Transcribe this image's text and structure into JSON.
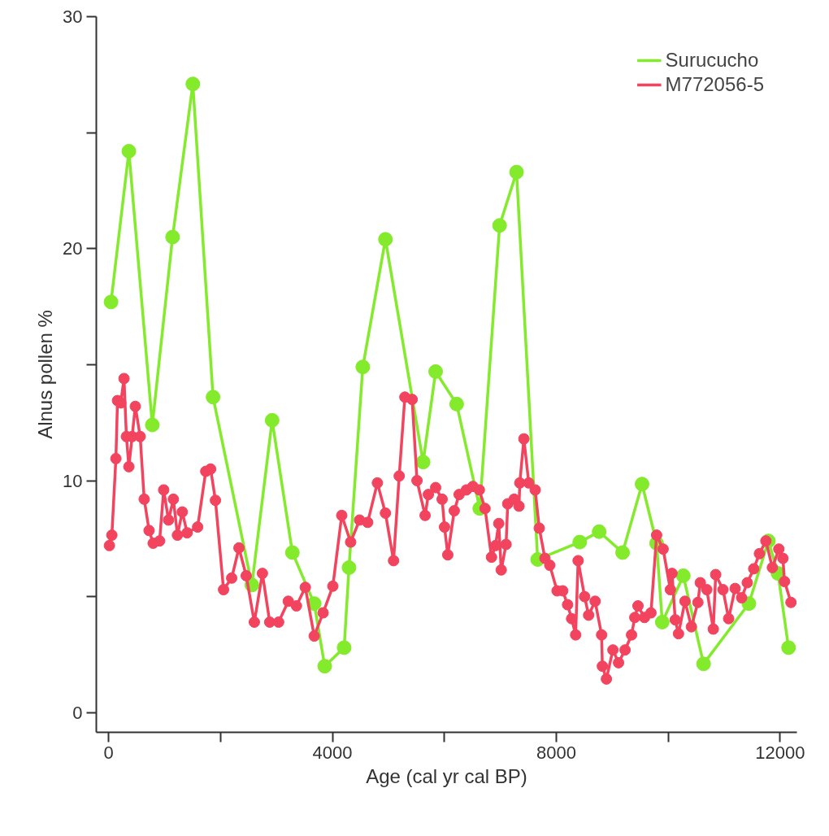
{
  "chart_data": {
    "type": "line",
    "xlabel": "Age (cal yr cal BP)",
    "ylabel": "Alnus pollen %",
    "xlim": [
      -220,
      12300
    ],
    "ylim": [
      -0.85,
      30
    ],
    "xticks": [
      0,
      {
        "value": 2000,
        "label": null
      },
      4000,
      {
        "value": 6000,
        "label": null
      },
      8000,
      {
        "value": 10000,
        "label": null
      },
      12000
    ],
    "yticks": [
      0,
      {
        "value": 5,
        "label": null
      },
      10,
      {
        "value": 15,
        "label": null
      },
      20,
      {
        "value": 25,
        "label": null
      },
      30
    ],
    "grid": false,
    "legend": "top right",
    "marker": "circle",
    "line_style": "solid",
    "series": [
      {
        "name": "Surucucho",
        "color": "#84ea2c",
        "x": [
          43,
          362,
          781,
          1143,
          1505,
          1866,
          2560,
          2922,
          3284,
          3674,
          3862,
          4209,
          4296,
          4542,
          4947,
          5620,
          5844,
          6220,
          6632,
          6987,
          7290,
          7667,
          8419,
          8766,
          9185,
          9533,
          9793,
          9894,
          10270,
          10632,
          11442,
          11790,
          11962,
          12151
        ],
        "values": [
          17.7,
          24.2,
          12.4,
          20.5,
          27.1,
          13.6,
          5.5,
          12.6,
          6.9,
          4.7,
          2.0,
          2.8,
          6.25,
          14.9,
          20.4,
          10.8,
          14.7,
          13.3,
          8.8,
          21.0,
          23.3,
          6.6,
          7.35,
          7.8,
          6.9,
          9.85,
          7.3,
          3.9,
          5.9,
          2.1,
          4.7,
          7.4,
          6.0,
          2.8
        ]
      },
      {
        "name": "M772056-5",
        "color": "#f2445e",
        "x": [
          14,
          58,
          130,
          159,
          217,
          275,
          318,
          362,
          420,
          477,
          564,
          636,
          723,
          796,
          911,
          984,
          1070,
          1157,
          1230,
          1316,
          1403,
          1591,
          1736,
          1823,
          1909,
          2054,
          2199,
          2329,
          2459,
          2604,
          2748,
          2879,
          3038,
          3211,
          3356,
          3515,
          3674,
          3833,
          4007,
          4166,
          4325,
          4484,
          4629,
          4803,
          4947,
          5092,
          5193,
          5294,
          5424,
          5511,
          5656,
          5714,
          5844,
          5960,
          6003,
          6061,
          6177,
          6264,
          6394,
          6510,
          6625,
          6727,
          6842,
          6914,
          6972,
          7016,
          7103,
          7132,
          7247,
          7334,
          7348,
          7421,
          7508,
          7623,
          7696,
          7797,
          7884,
          8014,
          8115,
          8202,
          8274,
          8346,
          8390,
          8506,
          8578,
          8694,
          8810,
          8824,
          8896,
          9012,
          9113,
          9229,
          9345,
          9403,
          9460,
          9576,
          9692,
          9793,
          9909,
          10039,
          10068,
          10126,
          10184,
          10300,
          10415,
          10531,
          10574,
          10690,
          10806,
          10849,
          10979,
          11080,
          11196,
          11312,
          11413,
          11529,
          11630,
          11746,
          11862,
          11977,
          12050,
          12079,
          12194
        ],
        "values": [
          7.2,
          7.65,
          10.95,
          13.45,
          13.35,
          14.4,
          11.9,
          10.6,
          11.9,
          13.2,
          11.9,
          9.2,
          7.85,
          7.3,
          7.4,
          9.6,
          8.3,
          9.2,
          7.65,
          8.65,
          7.75,
          8.0,
          10.4,
          10.5,
          9.15,
          5.3,
          5.8,
          7.1,
          5.9,
          3.9,
          6.0,
          3.9,
          3.9,
          4.8,
          4.6,
          5.4,
          3.3,
          4.3,
          5.45,
          8.5,
          7.35,
          8.3,
          8.2,
          9.9,
          8.6,
          6.55,
          10.2,
          13.6,
          13.5,
          10.0,
          8.5,
          9.4,
          9.7,
          9.2,
          8.0,
          6.8,
          8.7,
          9.4,
          9.6,
          9.75,
          9.6,
          8.8,
          6.7,
          7.2,
          8.15,
          6.15,
          7.25,
          9.0,
          9.2,
          8.9,
          9.9,
          11.8,
          9.9,
          9.6,
          7.95,
          6.65,
          6.35,
          5.25,
          5.25,
          4.65,
          4.05,
          3.35,
          6.55,
          5.0,
          4.2,
          4.8,
          3.35,
          2.0,
          1.45,
          2.7,
          2.15,
          2.7,
          3.35,
          4.1,
          4.6,
          4.1,
          4.3,
          7.65,
          7.05,
          5.3,
          6.0,
          4.0,
          3.4,
          4.8,
          3.7,
          4.75,
          5.6,
          5.3,
          3.6,
          5.95,
          5.3,
          4.05,
          5.35,
          4.95,
          5.6,
          6.2,
          6.85,
          7.4,
          6.25,
          7.05,
          6.65,
          5.65,
          4.75
        ]
      }
    ]
  }
}
